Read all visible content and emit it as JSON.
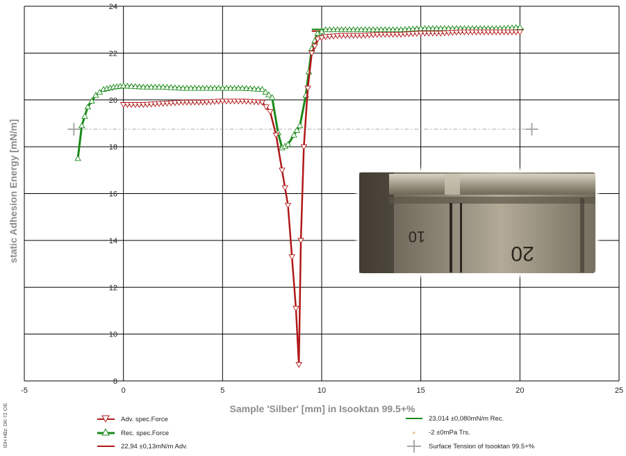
{
  "colors": {
    "adv": "#b01818",
    "rec": "#1a8a1a",
    "surface": "#a8a8a8",
    "grid": "#000000",
    "trs": "#e08a2a"
  },
  "side_label": "IDH HBz: DK-72 CIE",
  "chart_data": {
    "type": "line",
    "title": "",
    "xlabel": "Sample 'Silber' [mm] in Isooktan 99.5+%",
    "ylabel": "static Adhesion Energy [mN/m]",
    "xlim": [
      -5,
      25
    ],
    "ylim": [
      8,
      24
    ],
    "x_ticks": [
      "-5",
      "0",
      "5",
      "10",
      "15",
      "20",
      "25"
    ],
    "y_ticks": [
      "8",
      "10",
      "12",
      "14",
      "16",
      "18",
      "20",
      "22",
      "24"
    ],
    "grid": true,
    "legend_position": "bottom",
    "series": [
      {
        "name": "Adv. spec.Force",
        "marker": "triangle-down",
        "x": [
          0,
          1,
          2,
          3,
          4,
          5,
          6,
          7,
          7.4,
          7.7,
          8.0,
          8.3,
          8.5,
          8.7,
          8.85,
          8.95,
          9.1,
          9.3,
          9.5,
          9.8,
          10.2,
          11,
          12,
          13,
          14,
          15,
          16,
          17,
          18,
          19,
          20
        ],
        "y": [
          19.8,
          19.8,
          19.85,
          19.9,
          19.9,
          19.95,
          19.95,
          19.9,
          19.5,
          18.5,
          17.0,
          15.5,
          13.3,
          11.1,
          8.7,
          14.0,
          18.0,
          20.5,
          22.0,
          22.6,
          22.7,
          22.75,
          22.75,
          22.8,
          22.8,
          22.85,
          22.85,
          22.9,
          22.9,
          22.9,
          22.9
        ]
      },
      {
        "name": "Rec. spec.Force",
        "marker": "triangle-up",
        "x": [
          -2.3,
          -2.1,
          -1.8,
          -1.4,
          -1.0,
          -0.5,
          0,
          1,
          2,
          3,
          4,
          5,
          6,
          7,
          7.5,
          7.8,
          8.0,
          8.3,
          8.6,
          8.9,
          9.2,
          9.5,
          9.8,
          10.2,
          11,
          12,
          13,
          14,
          15,
          16,
          17,
          18,
          19,
          20
        ],
        "y": [
          17.5,
          18.9,
          19.7,
          20.2,
          20.45,
          20.55,
          20.6,
          20.55,
          20.55,
          20.5,
          20.5,
          20.5,
          20.5,
          20.45,
          20.1,
          18.6,
          17.95,
          18.1,
          18.5,
          18.9,
          20.2,
          22.2,
          22.85,
          23.0,
          23.0,
          23.0,
          23.0,
          23.0,
          23.05,
          23.05,
          23.05,
          23.05,
          23.05,
          23.1
        ]
      }
    ],
    "reference_lines": [
      {
        "name": "22,94 ±0,13mN/m Adv.",
        "x": [
          9.5,
          20
        ],
        "y": 22.94
      },
      {
        "name": "23,014 ±0,080mN/m Rec.",
        "x": [
          9.5,
          20.2
        ],
        "y": 23.014
      },
      {
        "name": "Surface Tension of Isooktan 99.5+%",
        "x": [
          -2.5,
          20.6
        ],
        "y": 18.75
      }
    ],
    "legend": [
      "Adv. spec.Force",
      "Rec. spec.Force",
      "22,94 ±0,13mN/m Adv.",
      "23,014 ±0,080mN/m Rec.",
      "-2 ±0mPa Trs.",
      "Surface Tension of Isooktan 99.5+%"
    ]
  },
  "inset_photo": {
    "description_icon": "sample-photo",
    "labels": [
      "10",
      "20"
    ]
  }
}
